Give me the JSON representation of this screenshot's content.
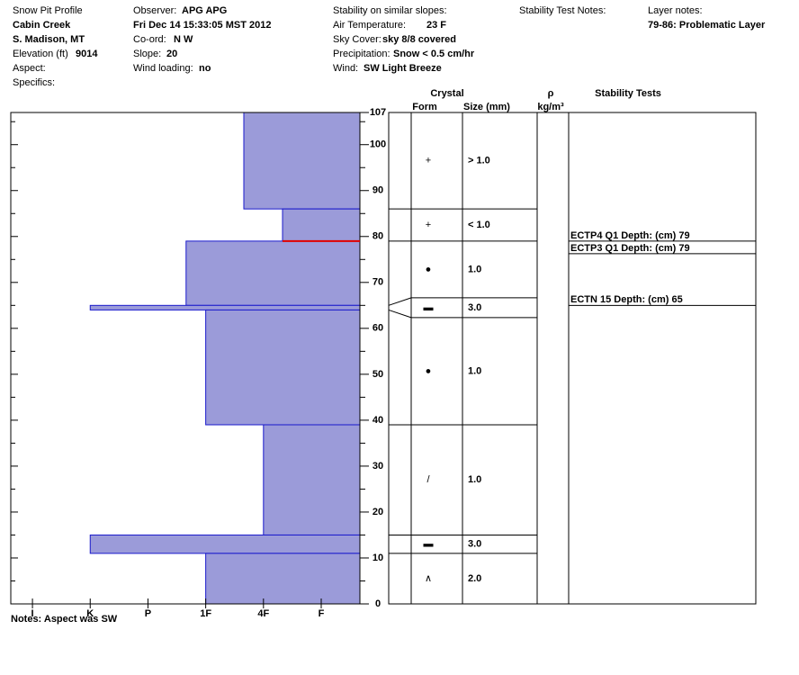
{
  "header": {
    "title": "Snow Pit Profile",
    "location": "Cabin Creek",
    "region": "S. Madison, MT",
    "elevation": {
      "label": "Elevation (ft)",
      "value": "9014"
    },
    "aspect": "Aspect:",
    "specifics": "Specifics:",
    "observer": {
      "label": "Observer:",
      "value": "APG APG"
    },
    "date": "Fri Dec 14 15:33:05 MST 2012",
    "coord": {
      "label": "Co-ord:",
      "value": "N W"
    },
    "slope": {
      "label": "Slope:",
      "value": "20"
    },
    "wind_loading": {
      "label": "Wind loading:",
      "value": "no"
    },
    "stability": "Stability on similar slopes:",
    "air_temp": {
      "label": "Air Temperature:",
      "value": "23 F"
    },
    "sky": {
      "label": "Sky Cover:",
      "value": "sky 8/8 covered"
    },
    "precip": {
      "label": "Precipitation:",
      "value": "Snow < 0.5 cm/hr"
    },
    "wind": {
      "label": "Wind:",
      "value": "SW Light Breeze"
    },
    "test_notes": "Stability Test Notes:",
    "layer_notes": {
      "label": "Layer notes:",
      "value": "79-86: Problematic Layer"
    }
  },
  "chart_data": {
    "type": "snow-profile",
    "ylim": [
      0,
      107
    ],
    "yticks": [
      0,
      10,
      20,
      30,
      40,
      50,
      60,
      70,
      80,
      90,
      100,
      107
    ],
    "minor_yticks": [
      5,
      15,
      25,
      35,
      45,
      55,
      65,
      75,
      85,
      95,
      105
    ],
    "xlim": [
      6.375,
      0.33
    ],
    "xticks": [
      {
        "value": 6,
        "label": "I"
      },
      {
        "value": 5,
        "label": "K"
      },
      {
        "value": 4,
        "label": "P"
      },
      {
        "value": 3,
        "label": "1F"
      },
      {
        "value": 2,
        "label": "4F"
      },
      {
        "value": 1,
        "label": "F"
      }
    ],
    "color": "#9b9bd9",
    "edge_color": "#1a1acc",
    "failure_color": "#e00000",
    "columns": {
      "crystal": "Crystal",
      "form": "Form",
      "size": "Size (mm)",
      "density": "ρ",
      "density_unit": "kg/m³",
      "tests": "Stability Tests"
    },
    "layers": [
      {
        "top": 107,
        "bottom": 86,
        "hardness": 2.34,
        "form": "+",
        "size": "> 1.0"
      },
      {
        "top": 86,
        "bottom": 79,
        "hardness": 1.67,
        "form": "+",
        "size": "< 1.0"
      },
      {
        "top": 79,
        "bottom": 65,
        "hardness": 3.34,
        "form": "●",
        "size": "1.0"
      },
      {
        "top": 65,
        "bottom": 64,
        "hardness": 5,
        "form": "▬",
        "size": "3.0"
      },
      {
        "top": 64,
        "bottom": 39,
        "hardness": 3,
        "form": "●",
        "size": "1.0"
      },
      {
        "top": 39,
        "bottom": 15,
        "hardness": 2,
        "form": "/",
        "size": "1.0"
      },
      {
        "top": 15,
        "bottom": 11,
        "hardness": 5,
        "form": "▬",
        "size": "3.0"
      },
      {
        "top": 11,
        "bottom": 0,
        "hardness": 3,
        "form": "∧",
        "size": "2.0"
      }
    ],
    "tests": [
      {
        "text": "ECTP4 Q1 Depth: (cm) 79",
        "depth": 79
      },
      {
        "text": "ECTP3 Q1 Depth: (cm) 79",
        "depth": 79
      },
      {
        "text": "ECTN 15  Depth: (cm) 65",
        "depth": 65
      }
    ],
    "notes": "Notes: Aspect was SW"
  }
}
